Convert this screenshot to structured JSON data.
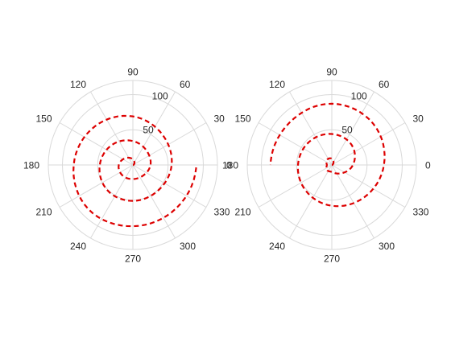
{
  "chart_data": [
    {
      "type": "polar-line",
      "theta_ticks_deg": [
        0,
        30,
        60,
        90,
        120,
        150,
        180,
        210,
        240,
        270,
        300,
        330
      ],
      "theta_tick_labels": [
        "0",
        "30",
        "60",
        "90",
        "120",
        "150",
        "180",
        "210",
        "240",
        "270",
        "300",
        "330"
      ],
      "r_ticks": [
        50,
        100
      ],
      "r_tick_labels": [
        "50",
        "100"
      ],
      "rlim": [
        0,
        120
      ],
      "grid": true,
      "series": [
        {
          "line_style": "dashed",
          "color": "#dd0000",
          "theta_deg": [
            0,
            45,
            90,
            135,
            180,
            225,
            270,
            315,
            360,
            405,
            450,
            495,
            540,
            585,
            630,
            675,
            720,
            765,
            810,
            855,
            900,
            945,
            990,
            1035,
            1080
          ],
          "r": [
            0,
            3,
            8,
            14,
            20,
            21,
            20,
            21,
            25,
            28,
            34,
            41,
            47,
            51,
            51,
            51,
            55,
            60,
            69,
            77,
            84,
            89,
            87,
            87,
            90
          ]
        }
      ]
    },
    {
      "type": "polar-line",
      "theta_ticks_deg": [
        0,
        30,
        60,
        90,
        120,
        150,
        180,
        210,
        240,
        270,
        300,
        330
      ],
      "theta_tick_labels": [
        "0",
        "30",
        "60",
        "90",
        "120",
        "150",
        "180",
        "210",
        "240",
        "270",
        "300",
        "330"
      ],
      "r_ticks": [
        50,
        100
      ],
      "r_tick_labels": [
        "50",
        "100"
      ],
      "rlim": [
        0,
        120
      ],
      "grid": true,
      "series": [
        {
          "line_style": "dashed",
          "color": "#dd0000",
          "theta_deg": [
            0,
            45,
            90,
            135,
            180,
            225,
            270,
            315,
            360,
            405,
            450,
            495,
            540,
            585,
            630,
            675,
            720,
            765,
            810,
            855,
            900
          ],
          "r": [
            0,
            3,
            9,
            10,
            7,
            10,
            10,
            17,
            30,
            40,
            44,
            46,
            48,
            52,
            58,
            65,
            74,
            83,
            87,
            85,
            87
          ]
        }
      ]
    }
  ]
}
